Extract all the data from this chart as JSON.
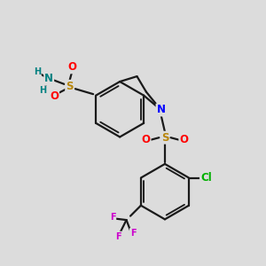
{
  "bg_color": "#dcdcdc",
  "bond_color": "#1a1a1a",
  "bond_width": 1.6,
  "atom_colors": {
    "S": "#b8860b",
    "O": "#ff0000",
    "N": "#0000ff",
    "N_amine": "#008080",
    "H": "#008080",
    "Cl": "#00b000",
    "F": "#cc00cc"
  },
  "font_size": 8.5,
  "font_size_small": 7.0
}
